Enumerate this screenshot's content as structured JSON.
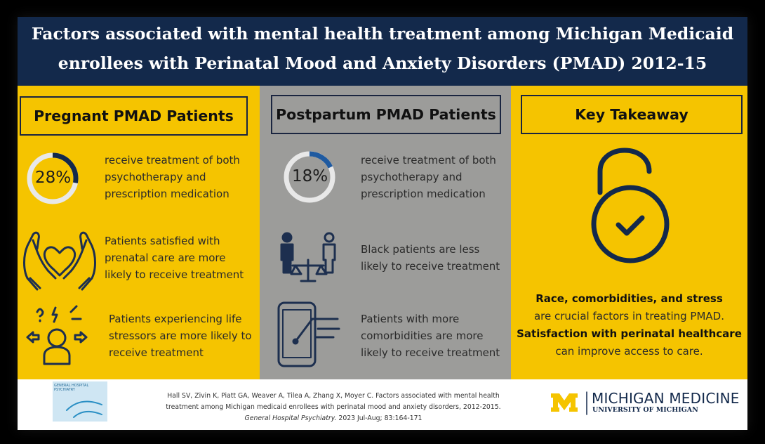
{
  "header": {
    "title_lines": [
      "Factors associated with mental health treatment among Michigan Medicaid",
      "enrollees with Perinatal Mood and Anxiety Disorders (PMAD) 2012-15"
    ]
  },
  "columns": [
    {
      "heading": "Pregnant PMAD Patients",
      "items": [
        {
          "value": 28,
          "value_label": "28%",
          "text": "receive treatment of both psychotherapy and prescription medication"
        },
        {
          "text": "Patients satisfied with prenatal care are more likely to receive treatment"
        },
        {
          "text": "Patients experiencing life stressors are more likely to receive treatment"
        }
      ]
    },
    {
      "heading": "Postpartum PMAD Patients",
      "items": [
        {
          "value": 18,
          "value_label": "18%",
          "text": "receive treatment of both psychotherapy and prescription medication"
        },
        {
          "text": "Black patients are less likely to receive treatment"
        },
        {
          "text": "Patients with more comorbidities are more likely to receive treatment"
        }
      ]
    }
  ],
  "takeaway": {
    "heading": "Key Takeaway",
    "lines": [
      {
        "text": "Race, comorbidities, and stress",
        "bold": true
      },
      {
        "text": "are crucial factors in treating PMAD.",
        "bold": false
      },
      {
        "text": "Satisfaction with perinatal healthcare",
        "bold": true
      },
      {
        "text": "can improve access to care.",
        "bold": false
      }
    ]
  },
  "footer": {
    "journal_logo": "GENERAL HOSPITAL PSYCHIATRY",
    "citation_lines": [
      "Hall SV,  Zivin K, Piatt GA, Weaver A, Tilea A, Zhang X, Moyer C. Factors associated with mental health",
      "treatment among Michigan medicaid enrollees with perinatal mood and anxiety disorders, 2012-2015."
    ],
    "citation_journal": "General Hospital Psychiatry.",
    "citation_issue": "2023 Jul-Aug; 83:164-171",
    "brand": "MICHIGAN MEDICINE",
    "brand_sub": "UNIVERSITY OF MICHIGAN"
  }
}
